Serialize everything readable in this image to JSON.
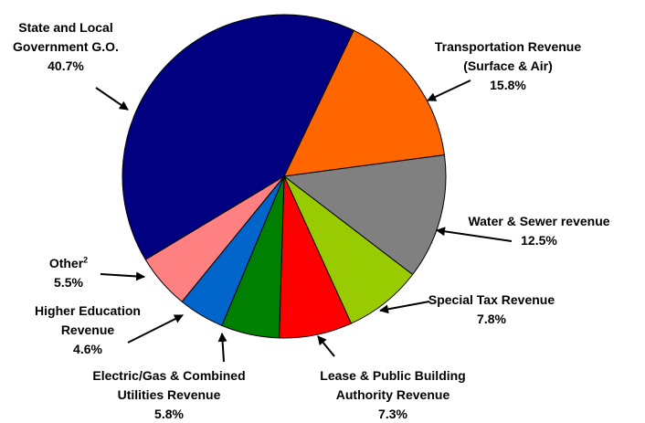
{
  "chart_data": {
    "type": "pie",
    "categories": [
      "State and Local Government G.O.",
      "Transportation Revenue (Surface & Air)",
      "Water & Sewer revenue",
      "Special Tax Revenue",
      "Lease & Public Building Authority Revenue",
      "Electric/Gas & Combined Utilities Revenue",
      "Higher Education Revenue",
      "Other"
    ],
    "footnote_marks": [
      null,
      null,
      null,
      null,
      null,
      null,
      null,
      "2"
    ],
    "values": [
      40.7,
      15.8,
      12.5,
      7.8,
      7.3,
      5.8,
      4.6,
      5.5
    ],
    "value_labels": [
      "40.7%",
      "15.8%",
      "12.5%",
      "7.8%",
      "7.3%",
      "5.8%",
      "4.6%",
      "5.5%"
    ],
    "colors": [
      "#000080",
      "#FF6600",
      "#808080",
      "#99CC00",
      "#FF0000",
      "#008000",
      "#0066CC",
      "#FF8080"
    ]
  }
}
